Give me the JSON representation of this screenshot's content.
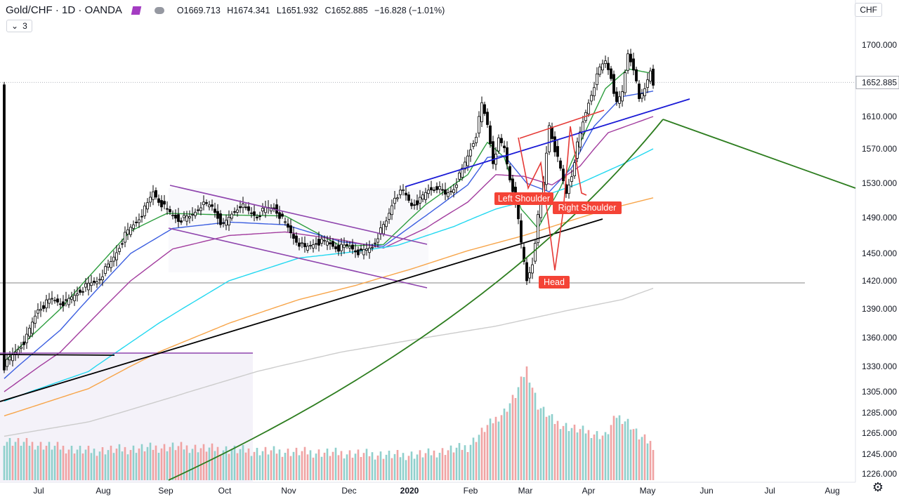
{
  "symbol": {
    "title": "Gold/CHF",
    "interval": "1D",
    "source": "OANDA",
    "open_label": "O",
    "open": "1669.713",
    "high_label": "H",
    "high": "1674.341",
    "low_label": "L",
    "low": "1651.932",
    "close_label": "C",
    "close": "1652.885",
    "change": "−16.828 (−1.01%)",
    "indicator_count": "3",
    "currency": "CHF"
  },
  "colors": {
    "up": "#ffffff",
    "down": "#000000",
    "candle_border": "#000000",
    "vol_up": "#8fd0cc",
    "vol_down": "#f0a3a3",
    "ema_green": "#2e9e3f",
    "ema_blue": "#3b5ee0",
    "ema_purple": "#a23c9e",
    "sma_cyan": "#22d8f0",
    "sma_orange": "#f7a54a",
    "sma_gray": "#cccccc",
    "channel": "#8e44ad",
    "blue_line": "#1a1ad6",
    "black_line": "#000000",
    "curve_green": "#2d7d1f",
    "neckline_red": "#e53935",
    "annotation_bg": "#f44336"
  },
  "chart_data": {
    "type": "candlestick",
    "title": "Gold/CHF",
    "ylabel": "CHF",
    "ylim": [
      1210,
      1760
    ],
    "last_price": 1652.885,
    "x_ticks": [
      "Jul",
      "Aug",
      "Sep",
      "Oct",
      "Nov",
      "Dec",
      "2020",
      "Feb",
      "Mar",
      "Apr",
      "May",
      "Jun",
      "Jul",
      "Aug"
    ],
    "y_ticks": [
      "1700.000",
      "1610.000",
      "1570.000",
      "1530.000",
      "1490.000",
      "1450.000",
      "1420.000",
      "1390.000",
      "1360.000",
      "1330.000",
      "1305.000",
      "1285.000",
      "1265.000",
      "1245.000",
      "1226.000"
    ],
    "y_top_label": "1",
    "annotations": [
      "Left Shoulder",
      "Right Shoulder",
      "Head"
    ],
    "price_path": [
      [
        0,
        1330
      ],
      [
        8,
        1360
      ],
      [
        12,
        1390
      ],
      [
        17,
        1400
      ],
      [
        22,
        1396
      ],
      [
        27,
        1410
      ],
      [
        33,
        1420
      ],
      [
        38,
        1440
      ],
      [
        43,
        1470
      ],
      [
        48,
        1490
      ],
      [
        51,
        1505
      ],
      [
        53,
        1520
      ],
      [
        55,
        1510
      ],
      [
        58,
        1498
      ],
      [
        62,
        1488
      ],
      [
        66,
        1490
      ],
      [
        70,
        1505
      ],
      [
        74,
        1503
      ],
      [
        78,
        1480
      ],
      [
        81,
        1494
      ],
      [
        84,
        1505
      ],
      [
        87,
        1497
      ],
      [
        90,
        1492
      ],
      [
        93,
        1500
      ],
      [
        96,
        1502
      ],
      [
        99,
        1488
      ],
      [
        103,
        1468
      ],
      [
        107,
        1455
      ],
      [
        111,
        1463
      ],
      [
        115,
        1462
      ],
      [
        119,
        1456
      ],
      [
        123,
        1458
      ],
      [
        127,
        1450
      ],
      [
        131,
        1458
      ],
      [
        133,
        1470
      ],
      [
        136,
        1485
      ],
      [
        139,
        1515
      ],
      [
        142,
        1520
      ],
      [
        145,
        1505
      ],
      [
        148,
        1510
      ],
      [
        151,
        1522
      ],
      [
        154,
        1526
      ],
      [
        157,
        1516
      ],
      [
        160,
        1525
      ],
      [
        163,
        1545
      ],
      [
        166,
        1570
      ],
      [
        168,
        1588
      ],
      [
        170,
        1625
      ],
      [
        172,
        1600
      ],
      [
        174,
        1555
      ],
      [
        176,
        1580
      ],
      [
        178,
        1570
      ],
      [
        180,
        1535
      ],
      [
        182,
        1510
      ],
      [
        184,
        1460
      ],
      [
        186,
        1420
      ],
      [
        188,
        1440
      ],
      [
        190,
        1490
      ],
      [
        192,
        1530
      ],
      [
        194,
        1600
      ],
      [
        196,
        1570
      ],
      [
        198,
        1545
      ],
      [
        200,
        1518
      ],
      [
        202,
        1540
      ],
      [
        204,
        1575
      ],
      [
        206,
        1602
      ],
      [
        208,
        1628
      ],
      [
        210,
        1650
      ],
      [
        212,
        1670
      ],
      [
        214,
        1680
      ],
      [
        216,
        1660
      ],
      [
        218,
        1625
      ],
      [
        220,
        1640
      ],
      [
        222,
        1690
      ],
      [
        224,
        1672
      ],
      [
        226,
        1630
      ],
      [
        228,
        1645
      ],
      [
        230,
        1669.7
      ],
      [
        231,
        1652.9
      ]
    ],
    "volume_path": [
      [
        0,
        1258
      ],
      [
        30,
        1248
      ],
      [
        60,
        1252
      ],
      [
        90,
        1248
      ],
      [
        120,
        1246
      ],
      [
        140,
        1244
      ],
      [
        150,
        1245
      ],
      [
        165,
        1252
      ],
      [
        172,
        1272
      ],
      [
        178,
        1286
      ],
      [
        182,
        1302
      ],
      [
        186,
        1328
      ],
      [
        190,
        1292
      ],
      [
        196,
        1276
      ],
      [
        202,
        1270
      ],
      [
        208,
        1266
      ],
      [
        214,
        1262
      ],
      [
        218,
        1282
      ],
      [
        222,
        1276
      ],
      [
        226,
        1262
      ],
      [
        231,
        1254
      ]
    ],
    "moving_averages": [
      {
        "color_key": "ema_green",
        "path": [
          [
            0,
            1335
          ],
          [
            20,
            1390
          ],
          [
            45,
            1475
          ],
          [
            58,
            1495
          ],
          [
            80,
            1493
          ],
          [
            100,
            1492
          ],
          [
            120,
            1458
          ],
          [
            135,
            1460
          ],
          [
            150,
            1505
          ],
          [
            165,
            1540
          ],
          [
            172,
            1578
          ],
          [
            178,
            1560
          ],
          [
            184,
            1500
          ],
          [
            190,
            1478
          ],
          [
            198,
            1525
          ],
          [
            206,
            1585
          ],
          [
            214,
            1645
          ],
          [
            222,
            1670
          ],
          [
            231,
            1664
          ]
        ]
      },
      {
        "color_key": "ema_blue",
        "path": [
          [
            0,
            1318
          ],
          [
            20,
            1368
          ],
          [
            45,
            1450
          ],
          [
            60,
            1478
          ],
          [
            80,
            1485
          ],
          [
            100,
            1482
          ],
          [
            120,
            1463
          ],
          [
            135,
            1458
          ],
          [
            150,
            1492
          ],
          [
            165,
            1528
          ],
          [
            172,
            1560
          ],
          [
            178,
            1562
          ],
          [
            186,
            1530
          ],
          [
            194,
            1520
          ],
          [
            202,
            1548
          ],
          [
            210,
            1598
          ],
          [
            220,
            1635
          ],
          [
            231,
            1642
          ]
        ]
      },
      {
        "color_key": "ema_purple",
        "path": [
          [
            0,
            1305
          ],
          [
            20,
            1345
          ],
          [
            45,
            1420
          ],
          [
            60,
            1455
          ],
          [
            80,
            1470
          ],
          [
            100,
            1474
          ],
          [
            120,
            1465
          ],
          [
            135,
            1456
          ],
          [
            150,
            1478
          ],
          [
            165,
            1508
          ],
          [
            175,
            1540
          ],
          [
            185,
            1538
          ],
          [
            195,
            1528
          ],
          [
            205,
            1550
          ],
          [
            215,
            1590
          ],
          [
            231,
            1610
          ]
        ]
      },
      {
        "color_key": "sma_cyan",
        "path": [
          [
            0,
            1296
          ],
          [
            30,
            1325
          ],
          [
            55,
            1375
          ],
          [
            80,
            1420
          ],
          [
            105,
            1445
          ],
          [
            125,
            1452
          ],
          [
            140,
            1459
          ],
          [
            160,
            1480
          ],
          [
            175,
            1500
          ],
          [
            190,
            1513
          ],
          [
            205,
            1530
          ],
          [
            220,
            1552
          ],
          [
            231,
            1570
          ]
        ]
      },
      {
        "color_key": "sma_orange",
        "path": [
          [
            0,
            1282
          ],
          [
            30,
            1308
          ],
          [
            55,
            1345
          ],
          [
            80,
            1375
          ],
          [
            105,
            1400
          ],
          [
            125,
            1415
          ],
          [
            145,
            1433
          ],
          [
            165,
            1453
          ],
          [
            185,
            1470
          ],
          [
            200,
            1485
          ],
          [
            215,
            1500
          ],
          [
            231,
            1513
          ]
        ]
      },
      {
        "color_key": "sma_gray",
        "path": [
          [
            0,
            1262
          ],
          [
            30,
            1276
          ],
          [
            60,
            1300
          ],
          [
            90,
            1325
          ],
          [
            120,
            1345
          ],
          [
            150,
            1360
          ],
          [
            175,
            1372
          ],
          [
            200,
            1388
          ],
          [
            220,
            1400
          ],
          [
            231,
            1412
          ]
        ]
      }
    ]
  }
}
